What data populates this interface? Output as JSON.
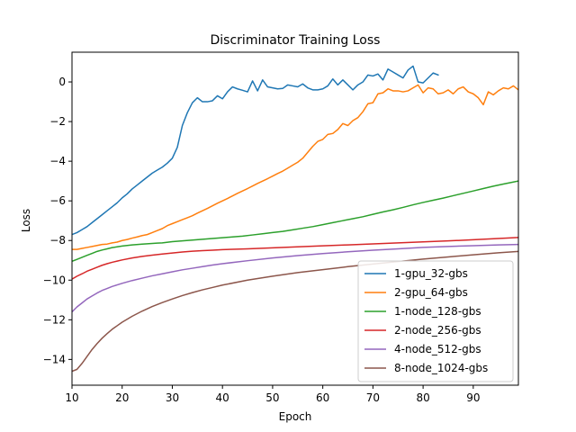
{
  "chart_data": {
    "type": "line",
    "title": "Discriminator Training Loss",
    "xlabel": "Epoch",
    "ylabel": "Loss",
    "xlim": [
      10,
      99
    ],
    "ylim": [
      -15.3,
      1.5
    ],
    "xticks": [
      10,
      20,
      30,
      40,
      50,
      60,
      70,
      80,
      90
    ],
    "yticks": [
      0,
      -2,
      -4,
      -6,
      -8,
      -10,
      -12,
      -14
    ],
    "grid": false,
    "legend_position": "lower-right",
    "series": [
      {
        "name": "1-gpu_32-gbs",
        "color": "#1f77b4",
        "x": [
          10,
          11,
          12,
          13,
          14,
          15,
          16,
          17,
          18,
          19,
          20,
          21,
          22,
          23,
          24,
          25,
          26,
          27,
          28,
          29,
          30,
          31,
          32,
          33,
          34,
          35,
          36,
          37,
          38,
          39,
          40,
          41,
          42,
          43,
          44,
          45,
          46,
          47,
          48,
          49,
          50,
          51,
          52,
          53,
          54,
          55,
          56,
          57,
          58,
          59,
          60,
          61,
          62,
          63,
          64,
          65,
          66,
          67,
          68,
          69,
          70,
          71,
          72,
          73,
          74,
          75,
          76,
          77,
          78,
          79,
          80,
          81,
          82,
          83
        ],
        "y": [
          -7.7,
          -7.6,
          -7.45,
          -7.3,
          -7.1,
          -6.9,
          -6.7,
          -6.5,
          -6.3,
          -6.1,
          -5.85,
          -5.65,
          -5.4,
          -5.2,
          -5.0,
          -4.8,
          -4.6,
          -4.45,
          -4.3,
          -4.1,
          -3.85,
          -3.3,
          -2.2,
          -1.55,
          -1.05,
          -0.8,
          -1.0,
          -1.0,
          -0.95,
          -0.7,
          -0.85,
          -0.5,
          -0.25,
          -0.35,
          -0.42,
          -0.5,
          0.05,
          -0.45,
          0.1,
          -0.25,
          -0.3,
          -0.35,
          -0.33,
          -0.15,
          -0.2,
          -0.25,
          -0.1,
          -0.3,
          -0.4,
          -0.4,
          -0.35,
          -0.2,
          0.15,
          -0.15,
          0.1,
          -0.15,
          -0.4,
          -0.15,
          0.0,
          0.35,
          0.3,
          0.4,
          0.1,
          0.65,
          0.5,
          0.35,
          0.2,
          0.6,
          0.8,
          0.0,
          -0.05,
          0.2,
          0.45,
          0.35
        ]
      },
      {
        "name": "2-gpu_64-gbs",
        "color": "#ff7f0e",
        "x": [
          10,
          11,
          12,
          13,
          14,
          15,
          16,
          17,
          18,
          19,
          20,
          21,
          22,
          23,
          24,
          25,
          26,
          27,
          28,
          29,
          30,
          31,
          32,
          33,
          34,
          35,
          36,
          37,
          38,
          39,
          40,
          41,
          42,
          43,
          44,
          45,
          46,
          47,
          48,
          49,
          50,
          51,
          52,
          53,
          54,
          55,
          56,
          57,
          58,
          59,
          60,
          61,
          62,
          63,
          64,
          65,
          66,
          67,
          68,
          69,
          70,
          71,
          72,
          73,
          74,
          75,
          76,
          77,
          78,
          79,
          80,
          81,
          82,
          83,
          84,
          85,
          86,
          87,
          88,
          89,
          90,
          91,
          92,
          93,
          94,
          95,
          96,
          97,
          98,
          99
        ],
        "y": [
          -8.45,
          -8.45,
          -8.4,
          -8.35,
          -8.3,
          -8.25,
          -8.2,
          -8.18,
          -8.12,
          -8.08,
          -8.0,
          -7.95,
          -7.88,
          -7.82,
          -7.75,
          -7.7,
          -7.6,
          -7.5,
          -7.4,
          -7.25,
          -7.15,
          -7.05,
          -6.95,
          -6.85,
          -6.75,
          -6.62,
          -6.5,
          -6.38,
          -6.25,
          -6.12,
          -6.0,
          -5.88,
          -5.75,
          -5.62,
          -5.5,
          -5.38,
          -5.25,
          -5.12,
          -5.0,
          -4.88,
          -4.75,
          -4.62,
          -4.5,
          -4.35,
          -4.2,
          -4.05,
          -3.85,
          -3.55,
          -3.25,
          -3.0,
          -2.9,
          -2.65,
          -2.6,
          -2.4,
          -2.1,
          -2.2,
          -1.95,
          -1.8,
          -1.5,
          -1.1,
          -1.05,
          -0.6,
          -0.55,
          -0.35,
          -0.45,
          -0.45,
          -0.5,
          -0.45,
          -0.3,
          -0.15,
          -0.55,
          -0.3,
          -0.35,
          -0.6,
          -0.55,
          -0.4,
          -0.6,
          -0.35,
          -0.25,
          -0.5,
          -0.6,
          -0.8,
          -1.15,
          -0.5,
          -0.65,
          -0.45,
          -0.3,
          -0.35,
          -0.2,
          -0.4
        ]
      },
      {
        "name": "1-node_128-gbs",
        "color": "#2ca02c",
        "x": [
          10,
          11,
          12,
          13,
          14,
          15,
          16,
          17,
          18,
          19,
          20,
          22,
          24,
          26,
          27,
          28,
          30,
          32,
          34,
          36,
          38,
          40,
          42,
          44,
          46,
          48,
          50,
          52,
          54,
          56,
          58,
          60,
          62,
          64,
          66,
          68,
          70,
          72,
          74,
          76,
          78,
          80,
          82,
          84,
          86,
          88,
          90,
          92,
          94,
          96,
          98,
          99
        ],
        "y": [
          -9.05,
          -8.95,
          -8.85,
          -8.75,
          -8.65,
          -8.55,
          -8.48,
          -8.42,
          -8.36,
          -8.32,
          -8.28,
          -8.22,
          -8.18,
          -8.15,
          -8.13,
          -8.12,
          -8.06,
          -8.02,
          -7.98,
          -7.94,
          -7.9,
          -7.86,
          -7.82,
          -7.78,
          -7.72,
          -7.66,
          -7.6,
          -7.54,
          -7.46,
          -7.38,
          -7.3,
          -7.2,
          -7.1,
          -7.0,
          -6.9,
          -6.8,
          -6.68,
          -6.56,
          -6.45,
          -6.33,
          -6.2,
          -6.08,
          -5.97,
          -5.86,
          -5.74,
          -5.62,
          -5.5,
          -5.38,
          -5.26,
          -5.15,
          -5.05,
          -5.0
        ]
      },
      {
        "name": "2-node_256-gbs",
        "color": "#d62728",
        "x": [
          10,
          11,
          12,
          13,
          14,
          15,
          16,
          17,
          18,
          19,
          20,
          22,
          24,
          26,
          28,
          30,
          32,
          34,
          36,
          38,
          40,
          45,
          50,
          55,
          60,
          65,
          70,
          75,
          80,
          85,
          90,
          95,
          99
        ],
        "y": [
          -9.95,
          -9.8,
          -9.68,
          -9.55,
          -9.45,
          -9.35,
          -9.25,
          -9.17,
          -9.1,
          -9.04,
          -8.98,
          -8.88,
          -8.8,
          -8.74,
          -8.68,
          -8.63,
          -8.58,
          -8.54,
          -8.51,
          -8.49,
          -8.46,
          -8.42,
          -8.37,
          -8.32,
          -8.27,
          -8.22,
          -8.17,
          -8.12,
          -8.07,
          -8.02,
          -7.96,
          -7.9,
          -7.85
        ]
      },
      {
        "name": "4-node_512-gbs",
        "color": "#9467bd",
        "x": [
          10,
          11,
          12,
          13,
          14,
          15,
          16,
          17,
          18,
          19,
          20,
          22,
          24,
          26,
          28,
          30,
          32,
          34,
          36,
          38,
          40,
          45,
          50,
          55,
          60,
          65,
          70,
          75,
          80,
          85,
          90,
          95,
          99
        ],
        "y": [
          -11.6,
          -11.35,
          -11.15,
          -10.95,
          -10.8,
          -10.65,
          -10.52,
          -10.42,
          -10.32,
          -10.24,
          -10.16,
          -10.02,
          -9.9,
          -9.78,
          -9.68,
          -9.58,
          -9.48,
          -9.4,
          -9.32,
          -9.24,
          -9.17,
          -9.02,
          -8.88,
          -8.76,
          -8.66,
          -8.57,
          -8.49,
          -8.42,
          -8.35,
          -8.3,
          -8.26,
          -8.22,
          -8.2
        ]
      },
      {
        "name": "8-node_1024-gbs",
        "color": "#8c564b",
        "x": [
          10,
          11,
          12,
          13,
          14,
          15,
          16,
          17,
          18,
          19,
          20,
          22,
          24,
          26,
          28,
          30,
          32,
          34,
          36,
          38,
          40,
          45,
          50,
          55,
          60,
          65,
          70,
          75,
          80,
          85,
          90,
          95,
          99
        ],
        "y": [
          -14.6,
          -14.5,
          -14.2,
          -13.85,
          -13.5,
          -13.2,
          -12.93,
          -12.7,
          -12.48,
          -12.3,
          -12.12,
          -11.82,
          -11.56,
          -11.33,
          -11.13,
          -10.95,
          -10.78,
          -10.63,
          -10.49,
          -10.37,
          -10.25,
          -10.0,
          -9.8,
          -9.62,
          -9.47,
          -9.32,
          -9.19,
          -9.06,
          -8.94,
          -8.83,
          -8.72,
          -8.62,
          -8.55
        ]
      }
    ]
  }
}
